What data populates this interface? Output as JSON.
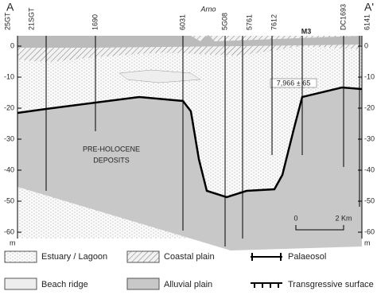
{
  "header": {
    "start": "A",
    "end": "A'"
  },
  "river": "Arno",
  "boreholes": [
    "25GT",
    "21SGT",
    "1690",
    "6031",
    "5G08",
    "5761",
    "7612",
    "M3",
    "DC1693",
    "6141"
  ],
  "axis": {
    "ticks": [
      0,
      -10,
      -20,
      -30,
      -40,
      -50,
      -60
    ],
    "unit": "m"
  },
  "date_label": "7,966 ± 65",
  "deposit_label": [
    "PRE-HOLOCENE",
    "DEPOSITS"
  ],
  "scale": {
    "start": "0",
    "end": "2 Km"
  },
  "legend": [
    "Estuary / Lagoon",
    "Coastal plain",
    "Palaeosol",
    "Beach ridge",
    "Alluvial plain",
    "Transgressive surface"
  ]
}
